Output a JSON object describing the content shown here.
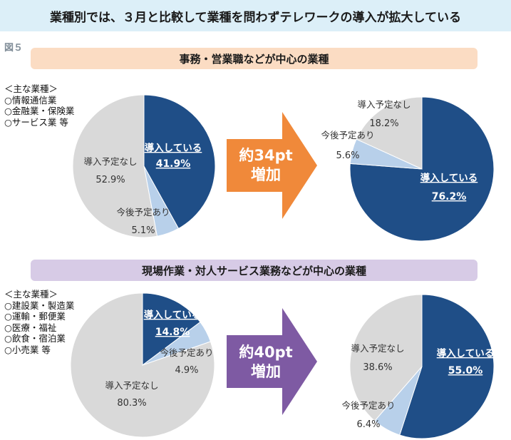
{
  "header": {
    "title": "業種別では、３月と比較して業種を問わずテレワークの導入が拡大している"
  },
  "figure_label": "図５",
  "sections": [
    {
      "header": "事務・営業職などが中心の業種",
      "industry_list": [
        "＜主な業種＞",
        "○情報通信業",
        "○金融業・保険業",
        "○サービス業 等"
      ],
      "arrow": {
        "line1": "約34pt",
        "line2": "増加",
        "color": "#f0893a"
      }
    },
    {
      "header": "現場作業・対人サービス業務などが中心の業種",
      "industry_list": [
        "＜主な業種＞",
        "○建設業・製造業",
        "○運輸・郵便業",
        "○医療・福祉",
        "○飲食・宿泊業",
        "○小売業 等"
      ],
      "arrow": {
        "line1": "約40pt",
        "line2": "増加",
        "color": "#7e5aa3"
      }
    }
  ],
  "colors": {
    "introduced": "#1f4e87",
    "planned": "#b8d0ea",
    "not_planned": "#d9d9d9"
  },
  "chart_data": [
    {
      "type": "pie",
      "group": "事務・営業職などが中心の業種",
      "period": "before",
      "categories": [
        "導入している",
        "今後予定あり",
        "導入予定なし"
      ],
      "values": [
        41.9,
        5.1,
        52.9
      ],
      "labels": [
        "41.9%",
        "5.1%",
        "52.9%"
      ]
    },
    {
      "type": "pie",
      "group": "事務・営業職などが中心の業種",
      "period": "after",
      "categories": [
        "導入している",
        "今後予定あり",
        "導入予定なし"
      ],
      "values": [
        76.2,
        5.6,
        18.2
      ],
      "labels": [
        "76.2%",
        "5.6%",
        "18.2%"
      ]
    },
    {
      "type": "pie",
      "group": "現場作業・対人サービス業務などが中心の業種",
      "period": "before",
      "categories": [
        "導入している",
        "今後予定あり",
        "導入予定なし"
      ],
      "values": [
        14.8,
        4.9,
        80.3
      ],
      "labels": [
        "14.8%",
        "4.9%",
        "80.3%"
      ]
    },
    {
      "type": "pie",
      "group": "現場作業・対人サービス業務などが中心の業種",
      "period": "after",
      "categories": [
        "導入している",
        "今後予定あり",
        "導入予定なし"
      ],
      "values": [
        55.0,
        6.4,
        38.6
      ],
      "labels": [
        "55.0%",
        "6.4%",
        "38.6%"
      ]
    }
  ]
}
